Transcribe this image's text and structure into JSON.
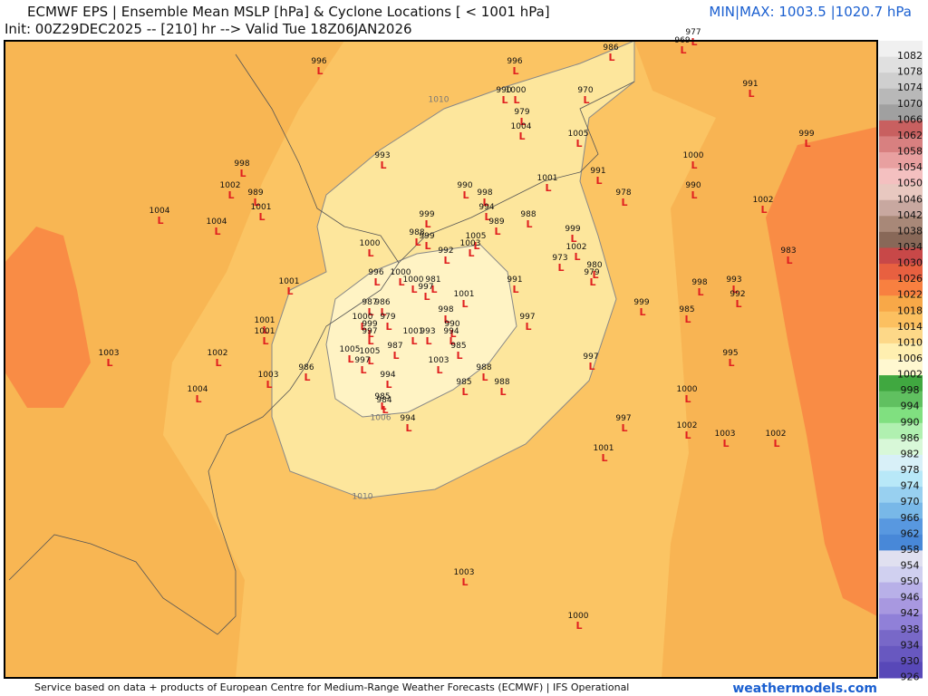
{
  "header": {
    "title": "ECMWF EPS | Ensemble Mean MSLP [hPa] & Cyclone Locations [ < 1001 hPa]",
    "subtitle": "Init: 00Z29DEC2025 -- [210] hr --> Valid Tue 18Z06JAN2026",
    "minmax": "MIN|MAX: 1003.5 |1020.7 hPa"
  },
  "footer": {
    "credit": "Service based on data + products of European Centre for Medium-Range Weather Forecasts (ECMWF) | IFS Operational",
    "brand": "weathermodels.com"
  },
  "map": {
    "contour_labels": [
      "1010",
      "1010",
      "1006"
    ],
    "cyclone_symbol": "L",
    "cyclone_labels": [
      977,
      969,
      986,
      996,
      996,
      991,
      990,
      1000,
      970,
      979,
      1004,
      1005,
      999,
      993,
      1000,
      998,
      991,
      1001,
      1002,
      990,
      990,
      989,
      998,
      978,
      1001,
      1002,
      994,
      1004,
      988,
      999,
      1004,
      989,
      999,
      988,
      999,
      1005,
      1000,
      992,
      1003,
      1002,
      983,
      973,
      980,
      979,
      996,
      1000,
      1001,
      1000,
      981,
      991,
      998,
      993,
      997,
      1001,
      992,
      987,
      986,
      999,
      998,
      985,
      1000,
      979,
      997,
      1001,
      999,
      990,
      1001,
      997,
      1001,
      993,
      994,
      987,
      985,
      1003,
      1005,
      1005,
      1002,
      995,
      997,
      1003,
      997,
      986,
      988,
      1003,
      994,
      985,
      988,
      1000,
      1004,
      985,
      984,
      994,
      997,
      1002,
      1003,
      1002,
      1001,
      1003,
      1000
    ]
  },
  "colorbar": {
    "levels": [
      1082,
      1078,
      1074,
      1070,
      1066,
      1062,
      1058,
      1054,
      1050,
      1046,
      1042,
      1038,
      1034,
      1030,
      1026,
      1022,
      1018,
      1014,
      1010,
      1006,
      1002,
      998,
      994,
      990,
      986,
      982,
      978,
      974,
      970,
      966,
      962,
      958,
      954,
      950,
      946,
      942,
      938,
      934,
      930,
      926
    ],
    "colors": [
      "#f0f0f0",
      "#e0e0e0",
      "#cfcfcf",
      "#b8b8b8",
      "#a0a0a0",
      "#c86060",
      "#d88080",
      "#e8a0a0",
      "#f4c0c0",
      "#e8c8c0",
      "#c8a8a0",
      "#a88878",
      "#886858",
      "#c84848",
      "#e86040",
      "#f88040",
      "#f8a848",
      "#fcc060",
      "#fdd888",
      "#ffefb0",
      "#fff8d0",
      "#40a840",
      "#60c060",
      "#80e080",
      "#b0f0b0",
      "#d8f8d8",
      "#d8f0f8",
      "#b8e8f8",
      "#98d0f0",
      "#78b8e8",
      "#5898e0",
      "#4888d8",
      "#e0e0f0",
      "#d0d0f0",
      "#b8b0e8",
      "#a898e0",
      "#9080d8",
      "#7868c8",
      "#6858c0",
      "#5848b8"
    ]
  }
}
